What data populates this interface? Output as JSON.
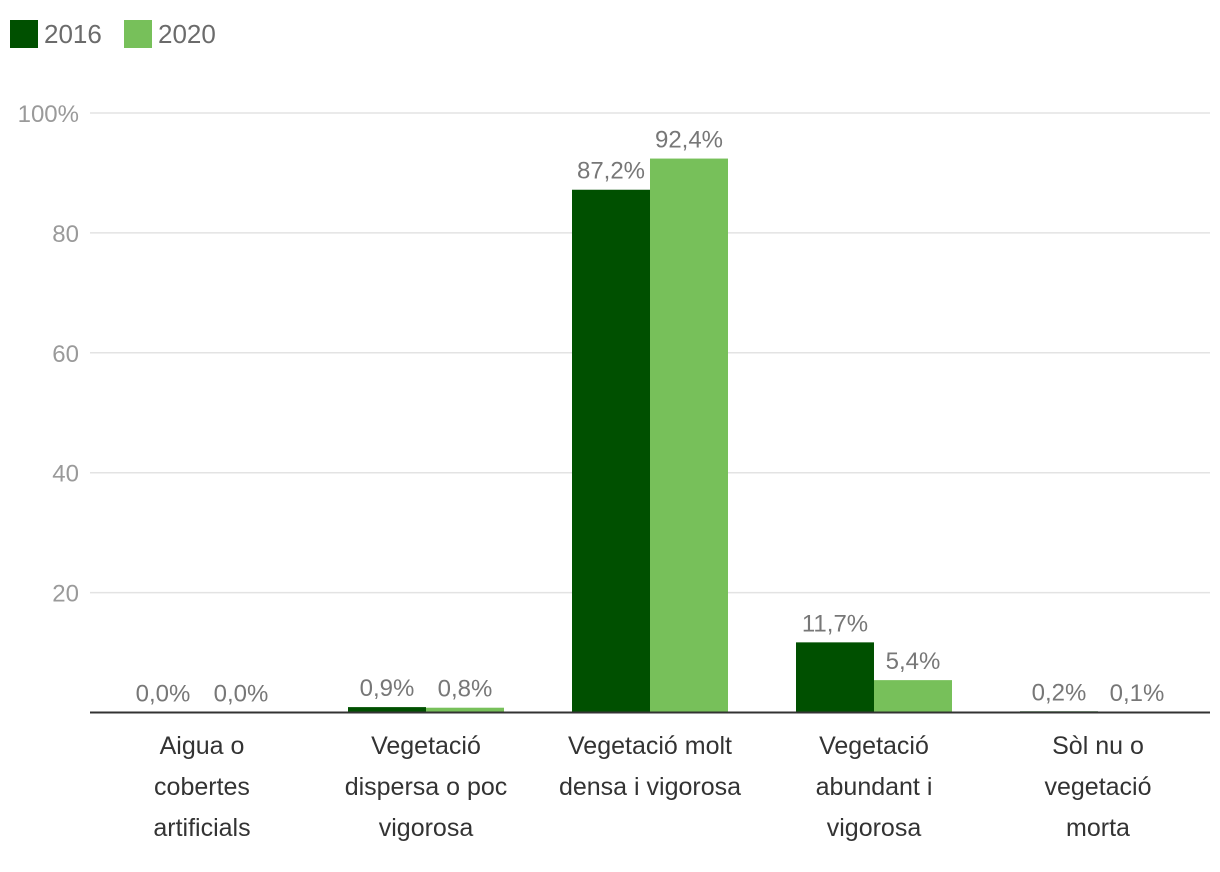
{
  "chart_data": {
    "type": "bar",
    "title": "",
    "xlabel": "",
    "ylabel": "",
    "ylim": [
      0,
      100
    ],
    "y_ticks": [
      {
        "value": 20,
        "label": "20"
      },
      {
        "value": 40,
        "label": "40"
      },
      {
        "value": 60,
        "label": "60"
      },
      {
        "value": 80,
        "label": "80"
      },
      {
        "value": 100,
        "label": "100%"
      }
    ],
    "grid": true,
    "legend_position": "top-left",
    "categories": [
      [
        "Aigua o",
        "cobertes",
        "artificials"
      ],
      [
        "Vegetació",
        "dispersa o poc",
        "vigorosa"
      ],
      [
        "Vegetació molt",
        "densa i vigorosa"
      ],
      [
        "Vegetació",
        "abundant i",
        "vigorosa"
      ],
      [
        "Sòl nu o",
        "vegetació",
        "morta"
      ]
    ],
    "series": [
      {
        "name": "2016",
        "color": "#005000",
        "values": [
          0.0,
          0.9,
          87.2,
          11.7,
          0.2
        ],
        "labels": [
          "0,0%",
          "0,9%",
          "87,2%",
          "11,7%",
          "0,2%"
        ]
      },
      {
        "name": "2020",
        "color": "#77c05a",
        "values": [
          0.0,
          0.8,
          92.4,
          5.4,
          0.1
        ],
        "labels": [
          "0,0%",
          "0,8%",
          "92,4%",
          "5,4%",
          "0,1%"
        ]
      }
    ]
  }
}
